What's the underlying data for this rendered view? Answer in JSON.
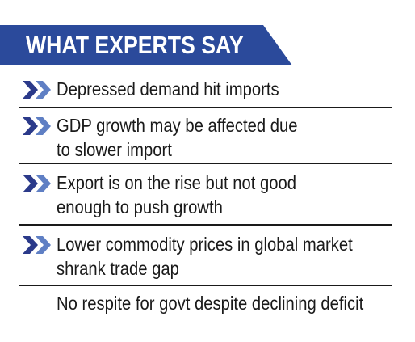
{
  "header": {
    "title": "WHAT EXPERTS SAY",
    "banner_color": "#2b4a9b"
  },
  "items": [
    {
      "lines": [
        "Depressed demand hit imports"
      ],
      "icon": "double-chevron-right-icon"
    },
    {
      "lines": [
        "GDP growth may be affected due",
        "to slower import"
      ],
      "icon": "double-chevron-right-icon"
    },
    {
      "lines": [
        "Export is on the rise but not good",
        "enough to push growth"
      ],
      "icon": "double-chevron-right-icon"
    },
    {
      "lines": [
        "Lower commodity prices in global market",
        "shrank trade gap"
      ],
      "icon": "double-chevron-right-icon"
    },
    {
      "lines": [
        "No respite for govt despite declining deficit"
      ],
      "icon": ""
    }
  ],
  "colors": {
    "chevron_dark": "#2b3a8a",
    "chevron_light": "#5f7fc4",
    "rule": "#1a1a1a"
  }
}
